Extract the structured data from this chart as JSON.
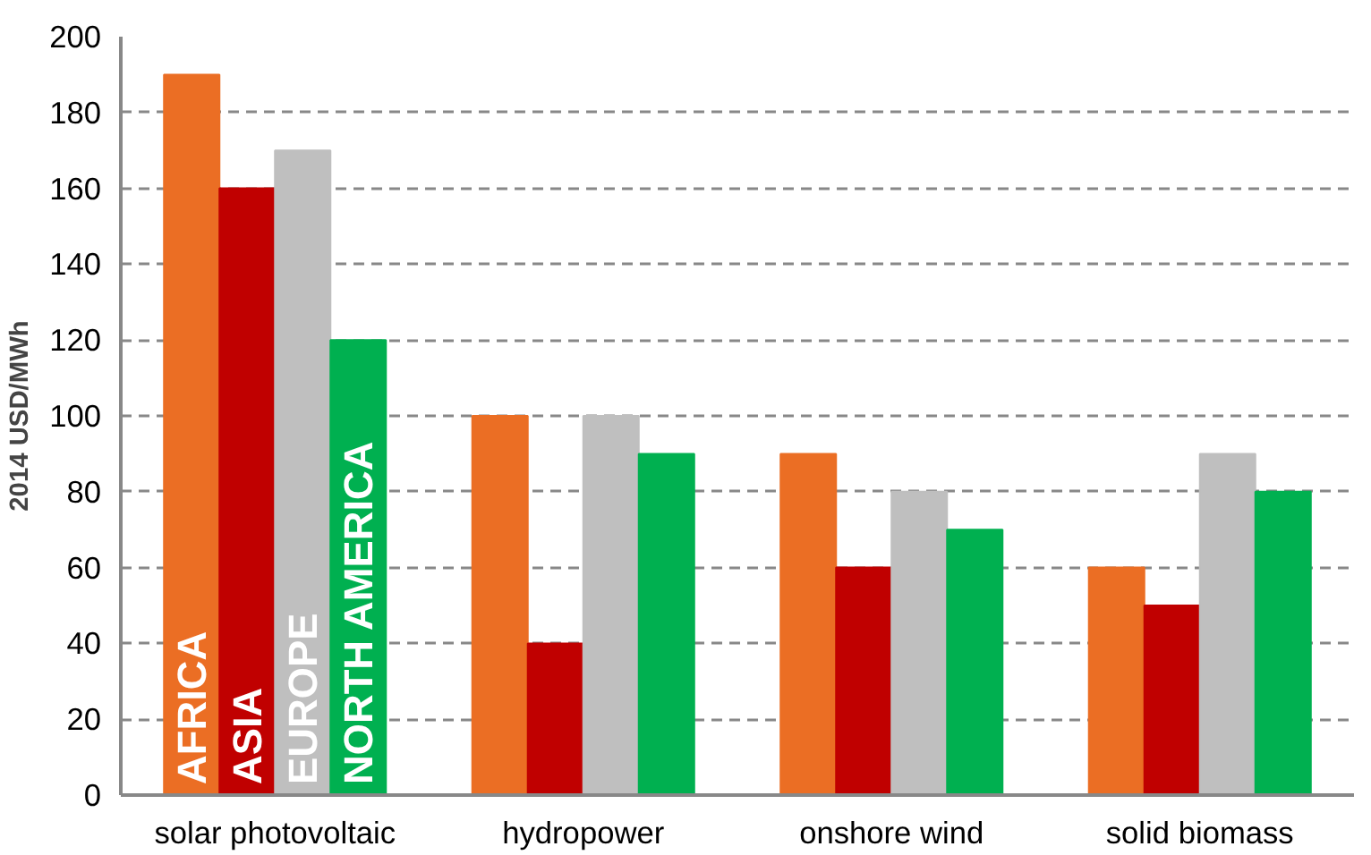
{
  "chart_data": {
    "type": "bar",
    "ylabel": "2014 USD/MWh",
    "categories": [
      "solar photovoltaic",
      "hydropower",
      "onshore wind",
      "solid biomass"
    ],
    "series": [
      {
        "name": "AFRICA",
        "color": "#eb6e24",
        "values": [
          190,
          100,
          90,
          60
        ]
      },
      {
        "name": "ASIA",
        "color": "#c00000",
        "values": [
          160,
          40,
          60,
          50
        ]
      },
      {
        "name": "EUROPE",
        "color": "#bfbfbf",
        "values": [
          170,
          100,
          80,
          90
        ]
      },
      {
        "name": "NORTH AMERICA",
        "color": "#00b050",
        "values": [
          120,
          90,
          70,
          80
        ]
      }
    ],
    "ylim": [
      0,
      200
    ],
    "yticks": [
      0,
      20,
      40,
      60,
      80,
      100,
      120,
      140,
      160,
      180,
      200
    ],
    "grid": "y"
  }
}
